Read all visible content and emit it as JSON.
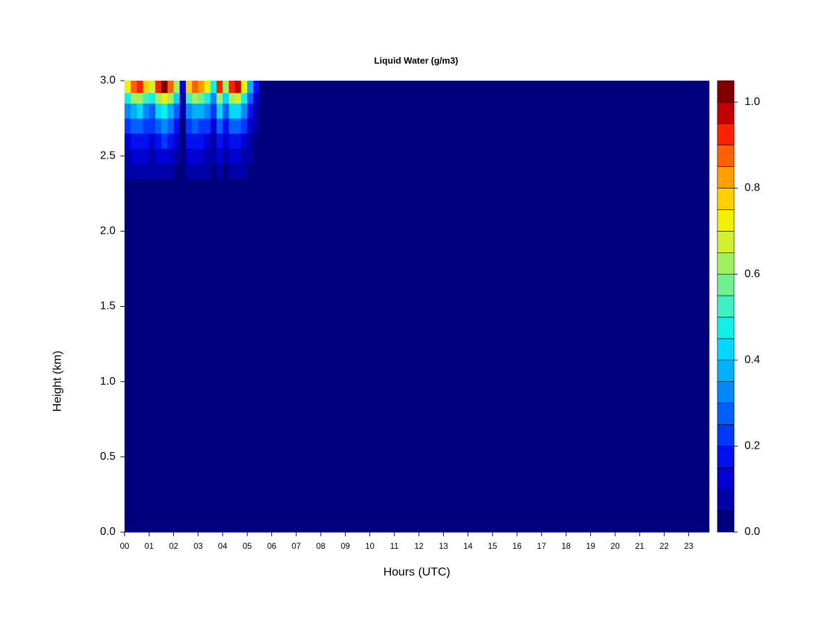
{
  "chart_data": {
    "type": "filled-contour",
    "title": "Liquid Water (g/m3)",
    "x_label": "Hours (UTC)",
    "y_label": "Height (km)",
    "xlim": [
      0,
      23.83
    ],
    "ylim": [
      0,
      3
    ],
    "xticks": [
      {
        "value": 0,
        "label": "00"
      },
      {
        "value": 1,
        "label": "01"
      },
      {
        "value": 2,
        "label": "02"
      },
      {
        "value": 3,
        "label": "03"
      },
      {
        "value": 4,
        "label": "04"
      },
      {
        "value": 5,
        "label": "05"
      },
      {
        "value": 6,
        "label": "06"
      },
      {
        "value": 7,
        "label": "07"
      },
      {
        "value": 8,
        "label": "08"
      },
      {
        "value": 9,
        "label": "09"
      },
      {
        "value": 10,
        "label": "10"
      },
      {
        "value": 11,
        "label": "11"
      },
      {
        "value": 12,
        "label": "12"
      },
      {
        "value": 13,
        "label": "13"
      },
      {
        "value": 14,
        "label": "14"
      },
      {
        "value": 15,
        "label": "15"
      },
      {
        "value": 16,
        "label": "16"
      },
      {
        "value": 17,
        "label": "17"
      },
      {
        "value": 18,
        "label": "18"
      },
      {
        "value": 19,
        "label": "19"
      },
      {
        "value": 20,
        "label": "20"
      },
      {
        "value": 21,
        "label": "21"
      },
      {
        "value": 22,
        "label": "22"
      },
      {
        "value": 23,
        "label": "23"
      }
    ],
    "yticks": [
      {
        "value": 0,
        "label": "0.0"
      },
      {
        "value": 0.5,
        "label": "0.5"
      },
      {
        "value": 1,
        "label": "1.0"
      },
      {
        "value": 1.5,
        "label": "1.5"
      },
      {
        "value": 2,
        "label": "2.0"
      },
      {
        "value": 2.5,
        "label": "2.5"
      },
      {
        "value": 3,
        "label": "3.0"
      }
    ],
    "x_edges": [
      0,
      0.25,
      0.5,
      0.75,
      1,
      1.25,
      1.5,
      1.75,
      2,
      2.25,
      2.5,
      2.75,
      3,
      3.25,
      3.5,
      3.75,
      4,
      4.25,
      4.5,
      4.75,
      5,
      5.25,
      5.5,
      23.83
    ],
    "y_edges": [
      0,
      2.35,
      2.45,
      2.55,
      2.65,
      2.75,
      2.85,
      2.92,
      3
    ],
    "z": [
      [
        0,
        0,
        0,
        0,
        0,
        0,
        0,
        0,
        0,
        0,
        0,
        0,
        0,
        0,
        0,
        0,
        0,
        0,
        0,
        0,
        0,
        0,
        0
      ],
      [
        0.05,
        0.06,
        0.06,
        0.05,
        0.05,
        0.06,
        0.07,
        0.06,
        0.04,
        0.01,
        0.05,
        0.06,
        0.06,
        0.05,
        0.03,
        0.06,
        0.04,
        0.06,
        0.07,
        0.05,
        0.02,
        0.01,
        0
      ],
      [
        0.09,
        0.11,
        0.12,
        0.1,
        0.08,
        0.12,
        0.13,
        0.11,
        0.08,
        0.01,
        0.1,
        0.11,
        0.1,
        0.09,
        0.06,
        0.12,
        0.08,
        0.12,
        0.12,
        0.09,
        0.05,
        0.02,
        0
      ],
      [
        0.14,
        0.17,
        0.18,
        0.15,
        0.13,
        0.18,
        0.2,
        0.17,
        0.12,
        0.02,
        0.15,
        0.17,
        0.16,
        0.14,
        0.09,
        0.18,
        0.12,
        0.18,
        0.19,
        0.14,
        0.07,
        0.03,
        0
      ],
      [
        0.21,
        0.26,
        0.27,
        0.23,
        0.2,
        0.27,
        0.3,
        0.26,
        0.18,
        0.03,
        0.23,
        0.26,
        0.24,
        0.21,
        0.14,
        0.27,
        0.18,
        0.27,
        0.29,
        0.21,
        0.11,
        0.05,
        0
      ],
      [
        0.32,
        0.38,
        0.41,
        0.34,
        0.29,
        0.41,
        0.45,
        0.38,
        0.27,
        0.05,
        0.34,
        0.38,
        0.36,
        0.32,
        0.2,
        0.41,
        0.27,
        0.41,
        0.43,
        0.32,
        0.16,
        0.07,
        0
      ],
      [
        0.49,
        0.6,
        0.63,
        0.53,
        0.46,
        0.63,
        0.7,
        0.6,
        0.42,
        0.07,
        0.53,
        0.6,
        0.56,
        0.49,
        0.32,
        0.63,
        0.42,
        0.63,
        0.67,
        0.49,
        0.25,
        0.11,
        0
      ],
      [
        0.7,
        0.85,
        0.9,
        0.75,
        0.65,
        0.9,
        1,
        0.85,
        0.6,
        0.1,
        0.75,
        0.85,
        0.8,
        0.7,
        0.45,
        0.9,
        0.6,
        0.9,
        0.95,
        0.7,
        0.35,
        0.15,
        0
      ]
    ],
    "levels": [
      0,
      0.05,
      0.1,
      0.15,
      0.2,
      0.25,
      0.3,
      0.35,
      0.4,
      0.45,
      0.5,
      0.55,
      0.6,
      0.65,
      0.7,
      0.75,
      0.8,
      0.85,
      0.9,
      0.95,
      1,
      1.05
    ],
    "colors": [
      "#00007F",
      "#0000A8",
      "#0000D0",
      "#0010F0",
      "#0038FF",
      "#0060FF",
      "#0088FF",
      "#00B0FF",
      "#00D8FF",
      "#10F0E8",
      "#40F0C0",
      "#70F090",
      "#A0F060",
      "#D0F030",
      "#F0F000",
      "#FFD000",
      "#FFA000",
      "#FF6000",
      "#FF2000",
      "#C00000",
      "#800000"
    ],
    "colorbar_ticks": [
      {
        "value": 0,
        "label": "0.0"
      },
      {
        "value": 0.2,
        "label": "0.2"
      },
      {
        "value": 0.4,
        "label": "0.4"
      },
      {
        "value": 0.6,
        "label": "0.6"
      },
      {
        "value": 0.8,
        "label": "0.8"
      },
      {
        "value": 1,
        "label": "1.0"
      }
    ]
  }
}
